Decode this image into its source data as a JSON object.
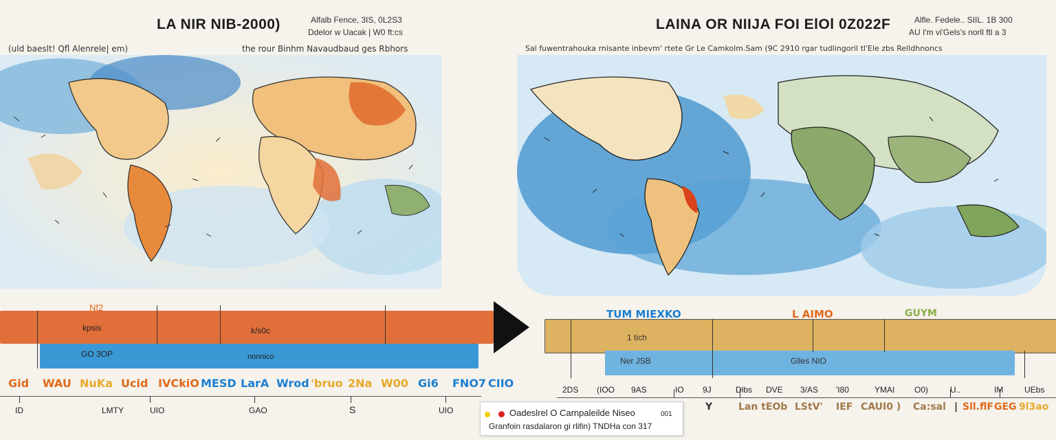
{
  "left": {
    "title": "LA NIR NIB-2000)",
    "note_line1": "Alfalb Fence, 3IS, 0L2S3",
    "note_line2": "Ddelor w Uacak | W0 ft:cs",
    "subtitle": "(uld baeslt! Qfl Alenrele| em)",
    "subtitle_right": "the rour Binhm Navaudbaud ges Rbhors",
    "top_bar_label_a": "Nf2",
    "top_bar_label_b": "kpsis",
    "top_bar_label_c": "k/s0c",
    "bottom_bar_label_a": "GO 3OP",
    "bottom_bar_label_b": "nonnico",
    "colored_labels": [
      {
        "text": "Gid",
        "color": "#e06a1c"
      },
      {
        "text": "WAU",
        "color": "#e06a1c"
      },
      {
        "text": "NuKa",
        "color": "#e8a92a"
      },
      {
        "text": "Ucid",
        "color": "#e06a1c"
      },
      {
        "text": "IVCkiO",
        "color": "#e06a1c"
      },
      {
        "text": "MESD",
        "color": "#1c7fd0"
      },
      {
        "text": "LarA",
        "color": "#1c7fd0"
      },
      {
        "text": "Wrod",
        "color": "#1c7fd0"
      },
      {
        "text": "'bruo",
        "color": "#e8a92a"
      },
      {
        "text": "2Na",
        "color": "#e8a92a"
      },
      {
        "text": "W00",
        "color": "#e8a92a"
      },
      {
        "text": "Gi6",
        "color": "#1c7fd0"
      },
      {
        "text": "FNO7",
        "color": "#1c7fd0"
      },
      {
        "text": "CIIO",
        "color": "#1c7fd0"
      }
    ],
    "ticks": [
      "ID",
      "LMTY",
      "UIO",
      "GAO",
      "S",
      "UIO"
    ]
  },
  "right": {
    "title": "LAINA OR NIIJA FOI ElOl 0Z022F",
    "note_line1": "Alfle. Fedele.. SIIL. 1B 300",
    "note_line2": "AU I'm vi'Gels's norll ftl a 3",
    "subtitle": "Sal fuwentrahouka rnisante inbevm' rtete Gr Le Camkolm.Sam (9C 2910 rgar tudlingoril tl'Ele zbs Relldhnoncs",
    "bar_headers": [
      {
        "text": "TUM MIEXKO",
        "color": "#1c7fd0"
      },
      {
        "text": "L AIMO",
        "color": "#e06a1c"
      },
      {
        "text": "GUYM",
        "color": "#8ab04a"
      }
    ],
    "top_bar_label": "1 tich",
    "bottom_bar_label_a": "Ner JSB",
    "bottom_bar_label_b": "Glles NIO",
    "ticks": [
      "2DS",
      "(IOO",
      "9AS",
      "IO",
      "9J",
      "Dlbs",
      "DVE",
      "3/AS",
      "'I80",
      "YMAI",
      "O0)",
      "U..",
      "IM",
      "UEbs"
    ],
    "bottom_row": [
      {
        "text": "Y",
        "color": "#333"
      },
      {
        "text": "Lan tEOb",
        "color": "#a07a4a"
      },
      {
        "text": "LStV'",
        "color": "#a07a4a"
      },
      {
        "text": "IEF",
        "color": "#a07a4a"
      },
      {
        "text": "CAUI0 )",
        "color": "#a07a4a"
      },
      {
        "text": "Ca:sal",
        "color": "#a07a4a"
      },
      {
        "text": "|",
        "color": "#333"
      },
      {
        "text": "Sll.flF",
        "color": "#e06a1c"
      },
      {
        "text": "GEG",
        "color": "#e06a1c"
      },
      {
        "text": "9l3ao",
        "color": "#e8a92a"
      }
    ]
  },
  "legend": {
    "line1": "Oadeslrel O Carnpaleilde Niseo",
    "line1_tail": "001",
    "line2": "Granfoin rasdalaron gi rlifin) TNDHa con 317",
    "dot1_color": "#f0d000",
    "dot2_color": "#e02020"
  },
  "colors": {
    "orange_bar": "#e06f3a",
    "blue_bar": "#3a98d4",
    "gold_bar": "#ddb260",
    "light_blue_bar": "#6fb3e0"
  }
}
